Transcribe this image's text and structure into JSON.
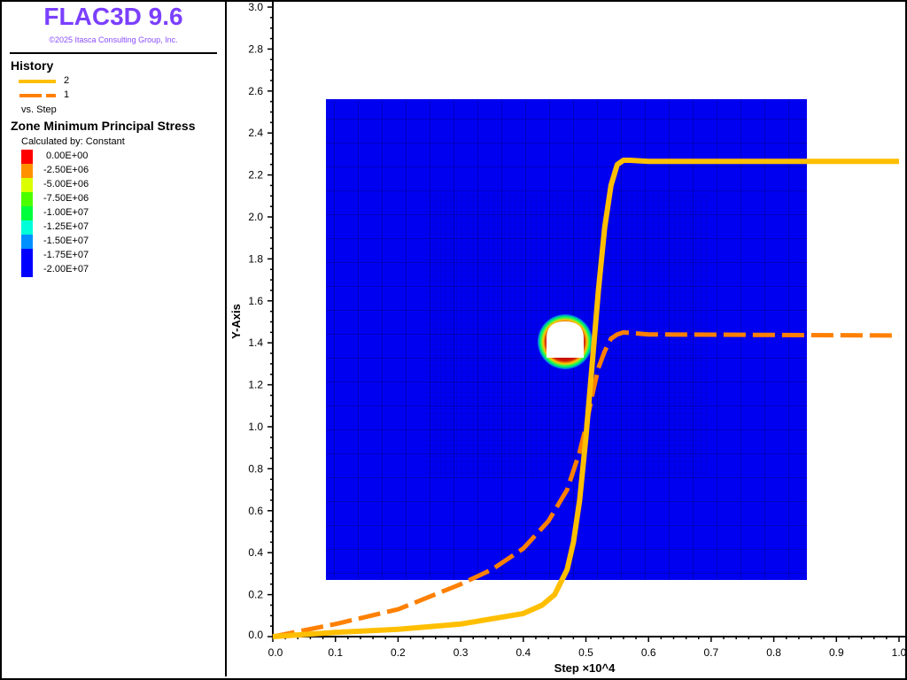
{
  "app": {
    "title": "FLAC3D 9.6",
    "copyright": "©2025 Itasca Consulting Group, Inc."
  },
  "legend": {
    "history_heading": "History",
    "series_labels": [
      "2",
      "1"
    ],
    "vs_label": "vs. Step",
    "contour_heading": "Zone Minimum Principal Stress",
    "calculated_by": "Calculated by: Constant",
    "contour_levels": [
      {
        "label": "0.00E+00",
        "color": "#ff0000"
      },
      {
        "label": "-2.50E+06",
        "color": "#ff9100"
      },
      {
        "label": "-5.00E+06",
        "color": "#dcff00"
      },
      {
        "label": "-7.50E+06",
        "color": "#4cff00"
      },
      {
        "label": "-1.00E+07",
        "color": "#00ff3c"
      },
      {
        "label": "-1.25E+07",
        "color": "#00ffd8"
      },
      {
        "label": "-1.50E+07",
        "color": "#0090ff"
      },
      {
        "label": "-1.75E+07",
        "color": "#0000ff"
      },
      {
        "label": "-2.00E+07",
        "color": "#0000ff"
      }
    ]
  },
  "chart_data": {
    "type": "line",
    "xlabel": "Step ×10^4",
    "ylabel": "Y-Axis",
    "xlim": [
      0,
      1.0
    ],
    "ylim": [
      0,
      3.0
    ],
    "xticks": [
      "0.0",
      "0.1",
      "0.2",
      "0.3",
      "0.4",
      "0.5",
      "0.6",
      "0.7",
      "0.8",
      "0.9",
      "1.0"
    ],
    "yticks": [
      "0.0",
      "0.2",
      "0.4",
      "0.6",
      "0.8",
      "1.0",
      "1.2",
      "1.4",
      "1.6",
      "1.8",
      "2.0",
      "2.2",
      "2.4",
      "2.6",
      "2.8",
      "3.0"
    ],
    "series": [
      {
        "name": "2",
        "style": "solid",
        "color": "#ffbf00",
        "x": [
          0,
          0.1,
          0.2,
          0.3,
          0.4,
          0.43,
          0.45,
          0.47,
          0.48,
          0.49,
          0.5,
          0.51,
          0.52,
          0.53,
          0.54,
          0.55,
          0.56,
          0.57,
          0.6,
          1.0
        ],
        "y": [
          0,
          0.02,
          0.035,
          0.06,
          0.11,
          0.15,
          0.2,
          0.32,
          0.45,
          0.65,
          0.95,
          1.3,
          1.65,
          1.95,
          2.15,
          2.25,
          2.27,
          2.27,
          2.265,
          2.265
        ]
      },
      {
        "name": "1",
        "style": "dashed",
        "color": "#ff8000",
        "x": [
          0,
          0.1,
          0.2,
          0.3,
          0.35,
          0.4,
          0.44,
          0.47,
          0.49,
          0.5,
          0.51,
          0.52,
          0.53,
          0.54,
          0.55,
          0.56,
          0.6,
          1.0
        ],
        "y": [
          0,
          0.06,
          0.13,
          0.25,
          0.32,
          0.42,
          0.55,
          0.7,
          0.88,
          1.0,
          1.15,
          1.28,
          1.36,
          1.42,
          1.44,
          1.45,
          1.44,
          1.435
        ]
      }
    ]
  }
}
